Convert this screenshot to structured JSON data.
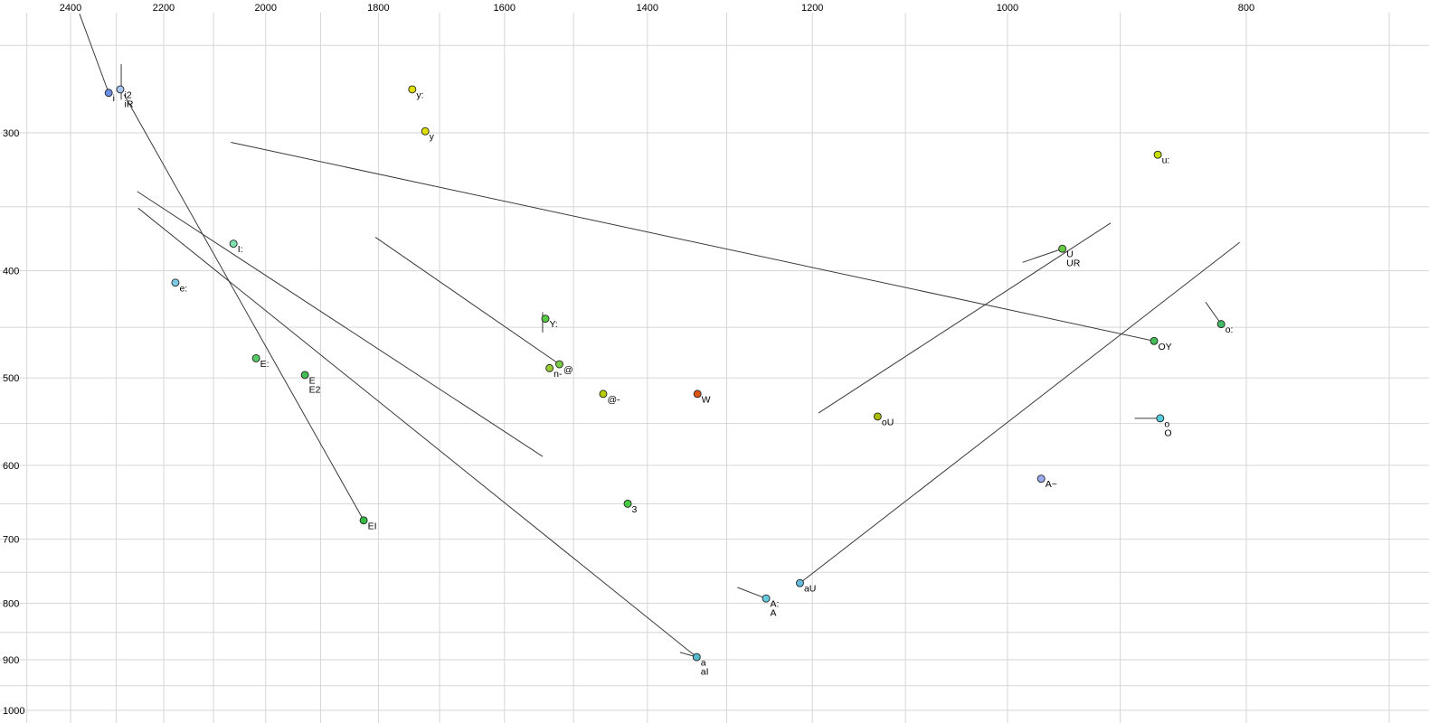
{
  "chart_data": {
    "type": "scatter",
    "title": "",
    "description": "Vowel formant plot (F2 horizontal reversed log scale on top axis, F1 vertical log scale on left axis) with labeled vowel tokens and diphthong/leader trajectory lines",
    "background_color": "#ffffff",
    "grid_color": "#d6d6d6",
    "line_color": "#3a3a3a",
    "marker_outline_color": "#222222",
    "x_axis": {
      "label": "",
      "position": "top",
      "scale": "log",
      "reversed": true,
      "ref": 2400,
      "ticks": [
        2400,
        2200,
        2000,
        1800,
        1600,
        1400,
        1200,
        1000,
        800
      ],
      "minor_ticks": [
        2500,
        2300,
        2100,
        1900,
        1700,
        1500,
        1300,
        1100,
        900,
        700
      ],
      "range": [
        2560,
        675
      ]
    },
    "y_axis": {
      "label": "",
      "position": "left",
      "scale": "log",
      "reversed": false,
      "ref": 300,
      "ticks": [
        300,
        400,
        500,
        600,
        700,
        800,
        900,
        1000
      ],
      "minor_ticks": [
        250,
        350,
        450,
        550,
        650,
        750,
        850,
        950
      ],
      "range": [
        227,
        1027
      ]
    },
    "points": [
      {
        "labels": [
          "i"
        ],
        "f2": 2316,
        "f1": 276,
        "color": "#6b8fe8"
      },
      {
        "labels": [
          "i2",
          "iR"
        ],
        "f2": 2291,
        "f1": 274,
        "color": "#a8c8f0"
      },
      {
        "labels": [
          "y:"
        ],
        "f2": 1744,
        "f1": 274,
        "color": "#dede00"
      },
      {
        "labels": [
          "y"
        ],
        "f2": 1723,
        "f1": 299,
        "color": "#dede00"
      },
      {
        "labels": [
          "u:"
        ],
        "f2": 869,
        "f1": 314,
        "color": "#c8e000"
      },
      {
        "labels": [
          "I:"
        ],
        "f2": 2061,
        "f1": 378,
        "color": "#7fe0b0"
      },
      {
        "labels": [
          "e:"
        ],
        "f2": 2176,
        "f1": 410,
        "color": "#80c8e8"
      },
      {
        "labels": [
          "Y:"
        ],
        "f2": 1540,
        "f1": 442,
        "color": "#55cc44"
      },
      {
        "labels": [
          "U",
          "UR"
        ],
        "f2": 950,
        "f1": 382,
        "color": "#66cc44"
      },
      {
        "labels": [
          "OY"
        ],
        "f2": 872,
        "f1": 463,
        "color": "#44bb55"
      },
      {
        "labels": [
          "o:"
        ],
        "f2": 819,
        "f1": 447,
        "color": "#44bb66"
      },
      {
        "labels": [
          "E:"
        ],
        "f2": 2018,
        "f1": 480,
        "color": "#55cc66"
      },
      {
        "labels": [
          "E",
          "E2"
        ],
        "f2": 1928,
        "f1": 497,
        "color": "#44bb55"
      },
      {
        "labels": [
          "n-"
        ],
        "f2": 1534,
        "f1": 490,
        "color": "#99cc33"
      },
      {
        "labels": [
          "@"
        ],
        "f2": 1520,
        "f1": 486,
        "color": "#77cc44"
      },
      {
        "labels": [
          "@-"
        ],
        "f2": 1459,
        "f1": 517,
        "color": "#b8cc00"
      },
      {
        "labels": [
          "W"
        ],
        "f2": 1336,
        "f1": 517,
        "color": "#dd5511"
      },
      {
        "labels": [
          "oU"
        ],
        "f2": 1129,
        "f1": 542,
        "color": "#aabb00"
      },
      {
        "labels": [
          "o",
          "O"
        ],
        "f2": 867,
        "f1": 544,
        "color": "#55ccdd"
      },
      {
        "labels": [
          "A~"
        ],
        "f2": 969,
        "f1": 617,
        "color": "#99aaee"
      },
      {
        "labels": [
          "3"
        ],
        "f2": 1426,
        "f1": 650,
        "color": "#44cc44"
      },
      {
        "labels": [
          "EI"
        ],
        "f2": 1825,
        "f1": 673,
        "color": "#33bb44"
      },
      {
        "labels": [
          "aU"
        ],
        "f2": 1214,
        "f1": 767,
        "color": "#66bbdd"
      },
      {
        "labels": [
          "A:",
          "A"
        ],
        "f2": 1253,
        "f1": 792,
        "color": "#66ccdd"
      },
      {
        "labels": [
          "a",
          "aI"
        ],
        "f2": 1337,
        "f1": 895,
        "color": "#55bbcc"
      }
    ],
    "lines": [
      {
        "name": "leader-i",
        "from": [
          2380,
          234
        ],
        "to": [
          2316,
          276
        ]
      },
      {
        "name": "leader-iR",
        "from": [
          2289,
          260
        ],
        "to": [
          2289,
          280
        ]
      },
      {
        "name": "trajectory-EI",
        "from": [
          2283,
          277
        ],
        "to": [
          1825,
          673
        ]
      },
      {
        "name": "trajectory-mid",
        "from": [
          2255,
          339
        ],
        "to": [
          1544,
          589
        ]
      },
      {
        "name": "trajectory-aI",
        "from": [
          2253,
          351
        ],
        "to": [
          1337,
          895
        ]
      },
      {
        "name": "trajectory-OY",
        "from": [
          2066,
          306
        ],
        "to": [
          872,
          463
        ]
      },
      {
        "name": "trajectory-schwa",
        "from": [
          1805,
          373
        ],
        "to": [
          1520,
          486
        ]
      },
      {
        "name": "trajectory-aU",
        "from": [
          1214,
          767
        ],
        "to": [
          805,
          377
        ]
      },
      {
        "name": "trajectory-oU",
        "from": [
          1193,
          538
        ],
        "to": [
          908,
          362
        ]
      },
      {
        "name": "leader-Y",
        "from": [
          1544,
          436
        ],
        "to": [
          1544,
          455
        ]
      },
      {
        "name": "leader-UR",
        "from": [
          986,
          393
        ],
        "to": [
          950,
          382
        ]
      },
      {
        "name": "leader-o-long",
        "from": [
          831,
          427
        ],
        "to": [
          819,
          447
        ]
      },
      {
        "name": "leader-o-O",
        "from": [
          888,
          544
        ],
        "to": [
          867,
          544
        ]
      },
      {
        "name": "leader-A",
        "from": [
          1287,
          774
        ],
        "to": [
          1253,
          792
        ]
      },
      {
        "name": "leader-a-aI",
        "from": [
          1358,
          886
        ],
        "to": [
          1337,
          895
        ]
      }
    ]
  }
}
